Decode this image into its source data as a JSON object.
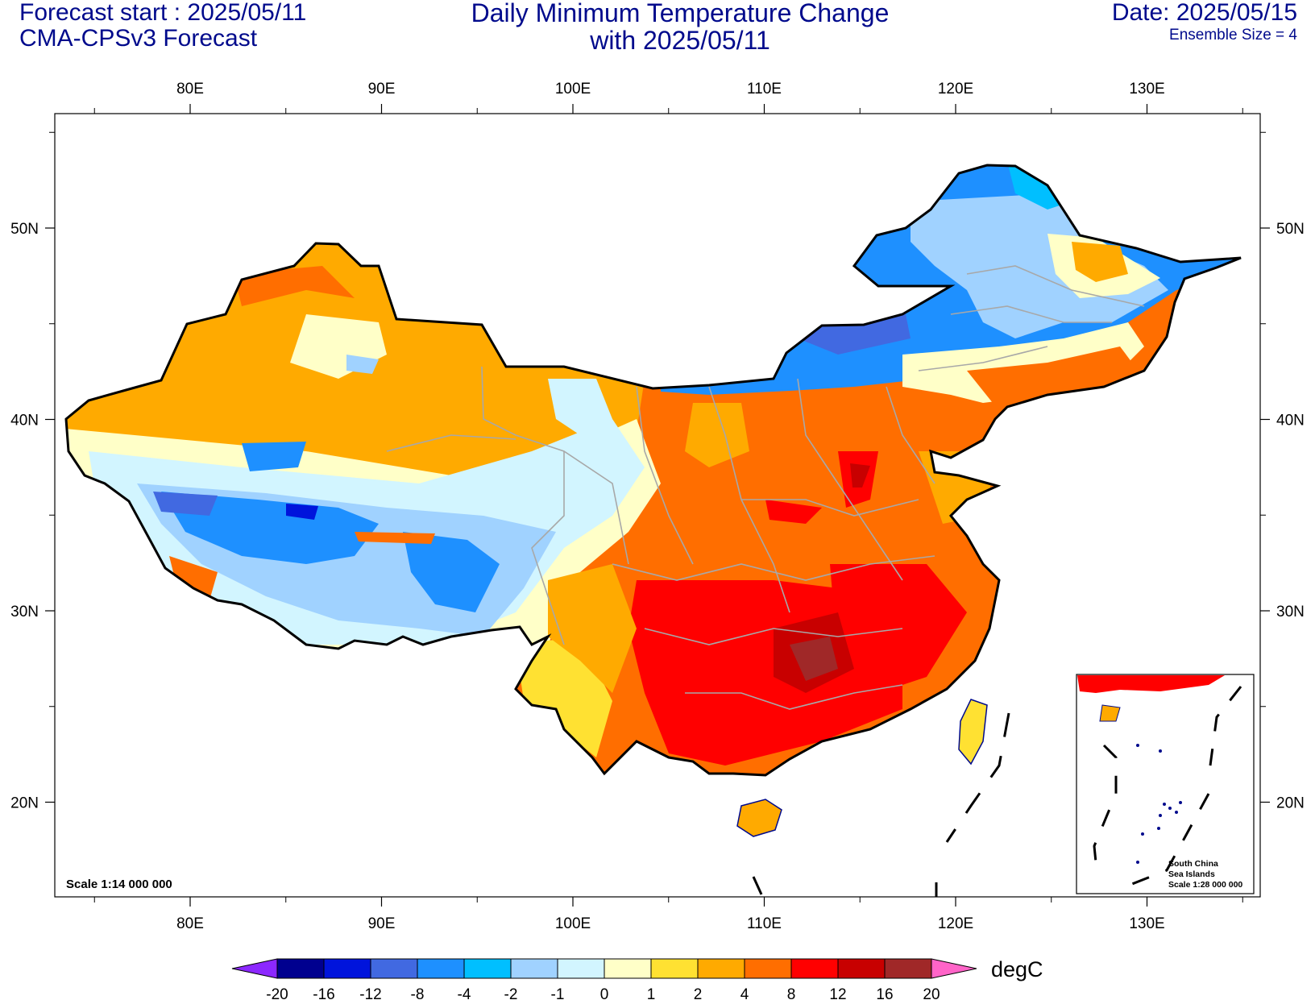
{
  "header": {
    "forecast_start": "Forecast start : 2025/05/11",
    "model": "CMA-CPSv3 Forecast",
    "title_line1": "Daily Minimum Temperature Change",
    "title_line2": "with 2025/05/11",
    "date": "Date: 2025/05/15",
    "ensemble": "Ensemble Size = 4"
  },
  "map": {
    "scale": "Scale 1:14 000 000",
    "lon_ticks": [
      {
        "lon": 80,
        "label": "80E"
      },
      {
        "lon": 90,
        "label": "90E"
      },
      {
        "lon": 100,
        "label": "100E"
      },
      {
        "lon": 110,
        "label": "110E"
      },
      {
        "lon": 120,
        "label": "120E"
      },
      {
        "lon": 130,
        "label": "130E"
      }
    ],
    "lat_ticks": [
      {
        "lat": 50,
        "label": "50N"
      },
      {
        "lat": 40,
        "label": "40N"
      },
      {
        "lat": 30,
        "label": "30N"
      },
      {
        "lat": 20,
        "label": "20N"
      }
    ],
    "inset": {
      "line1": "South China",
      "line2": "Sea Islands",
      "line3": "Scale 1:28 000 000"
    }
  },
  "colorbar": {
    "unit": "degC",
    "labels": [
      "-20",
      "-16",
      "-12",
      "-8",
      "-4",
      "-2",
      "-1",
      "0",
      "1",
      "2",
      "4",
      "8",
      "12",
      "16",
      "20"
    ],
    "colors": [
      "#00008f",
      "#0014dc",
      "#4169e1",
      "#1e90ff",
      "#00bfff",
      "#a0d2ff",
      "#d2f5ff",
      "#ffffc8",
      "#ffe132",
      "#ffaa00",
      "#ff6e00",
      "#ff0000",
      "#c80000",
      "#a02828"
    ],
    "low_color": "#8c28ff",
    "high_color": "#ff64c8"
  }
}
